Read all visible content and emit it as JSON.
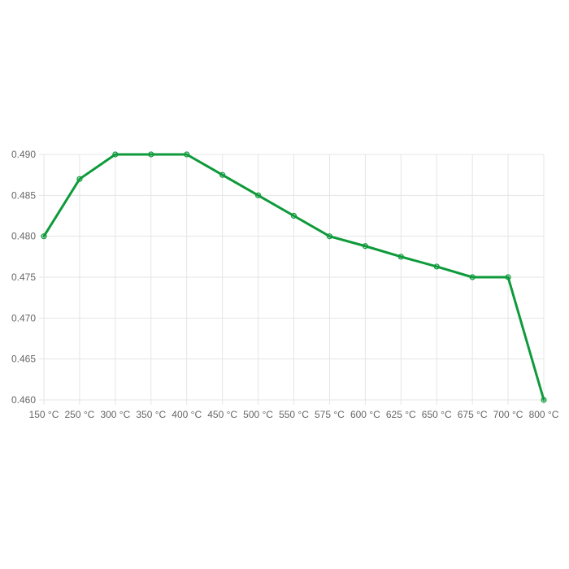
{
  "colors": {
    "series": "#0e9a3a",
    "grid": "#e5e5e5",
    "tick_text": "#666666",
    "background": "#ffffff"
  },
  "chart_data": {
    "type": "line",
    "title": "",
    "xlabel": "",
    "ylabel": "",
    "categories": [
      "150 °C",
      "250 °C",
      "300 °C",
      "350 °C",
      "400 °C",
      "450 °C",
      "500 °C",
      "550 °C",
      "575 °C",
      "600 °C",
      "625 °C",
      "650 °C",
      "675 °C",
      "700 °C",
      "800 °C"
    ],
    "series": [
      {
        "values": [
          0.48,
          0.487,
          0.49,
          0.49,
          0.49,
          0.4875,
          0.485,
          0.4825,
          0.48,
          0.4788,
          0.4775,
          0.4763,
          0.475,
          0.475,
          0.46
        ]
      }
    ],
    "ylim": [
      0.46,
      0.49
    ],
    "yticks": [
      "0.460",
      "0.465",
      "0.470",
      "0.475",
      "0.480",
      "0.485",
      "0.490"
    ],
    "grid": true,
    "legend": "none"
  }
}
